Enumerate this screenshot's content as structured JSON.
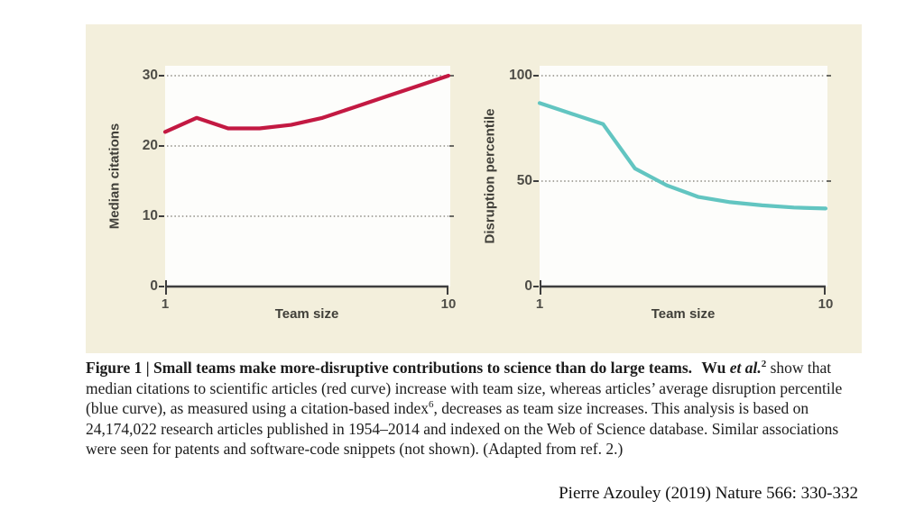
{
  "page": {
    "background": "#ffffff"
  },
  "panel": {
    "background": "#f3efdc"
  },
  "colors": {
    "plot_bg": "#fdfdfb",
    "axis": "#3e3e3e",
    "grid_dots": "#8e8c84",
    "grid_end_tick": "#6a6a64",
    "tick_text": "#4e4d47",
    "red_curve": "#c31942",
    "teal_curve": "#62c5c1",
    "caption_text": "#1c1c1c"
  },
  "chart_data": [
    {
      "type": "line",
      "title": "",
      "xlabel": "Team size",
      "ylabel": "Median citations",
      "series_name": "median-citations-red-curve",
      "color": "#c31942",
      "x": [
        1,
        2,
        3,
        4,
        5,
        6,
        7,
        8,
        9,
        10
      ],
      "values": [
        22,
        24,
        22.5,
        22.5,
        23,
        24,
        25.5,
        27,
        28.5,
        30
      ],
      "ylim": [
        0,
        30
      ],
      "yticks": [
        0,
        10,
        20,
        30
      ],
      "gridlines": [
        10,
        20,
        30
      ],
      "xticks_shown": [
        1,
        10
      ],
      "grid": "dotted-horizontal",
      "legend": "none"
    },
    {
      "type": "line",
      "title": "",
      "xlabel": "Team size",
      "ylabel": "Disruption percentile",
      "series_name": "disruption-percentile-blue-curve",
      "color": "#62c5c1",
      "x": [
        1,
        2,
        3,
        4,
        5,
        6,
        7,
        8,
        9,
        10
      ],
      "values": [
        87,
        82,
        77,
        56,
        48,
        42.5,
        40,
        38.5,
        37.5,
        37
      ],
      "ylim": [
        0,
        100
      ],
      "yticks": [
        0,
        50,
        100
      ],
      "gridlines": [
        50,
        100
      ],
      "xticks_shown": [
        1,
        10
      ],
      "grid": "dotted-horizontal",
      "legend": "none"
    }
  ],
  "caption": {
    "label_bold": "Figure 1 | Small teams make more-disruptive contributions to science than do large teams.",
    "ref_plain": "Wu ",
    "ref_italic": "et al.",
    "ref_sup": "2",
    "body_1": " show that median citations to scientific articles (red curve) increase with team size, whereas articles’ average disruption percentile (blue curve), as measured using a citation-based index",
    "index_sup": "6",
    "body_2": ", decreases as team size increases. This analysis is based on 24,174,022 research articles published in 1954–2014 and indexed on the Web of Science database. Similar associations were seen for patents and software-code snippets (not shown). (Adapted from ref. 2.)"
  },
  "credit": "Pierre Azouley (2019) Nature 566: 330-332"
}
